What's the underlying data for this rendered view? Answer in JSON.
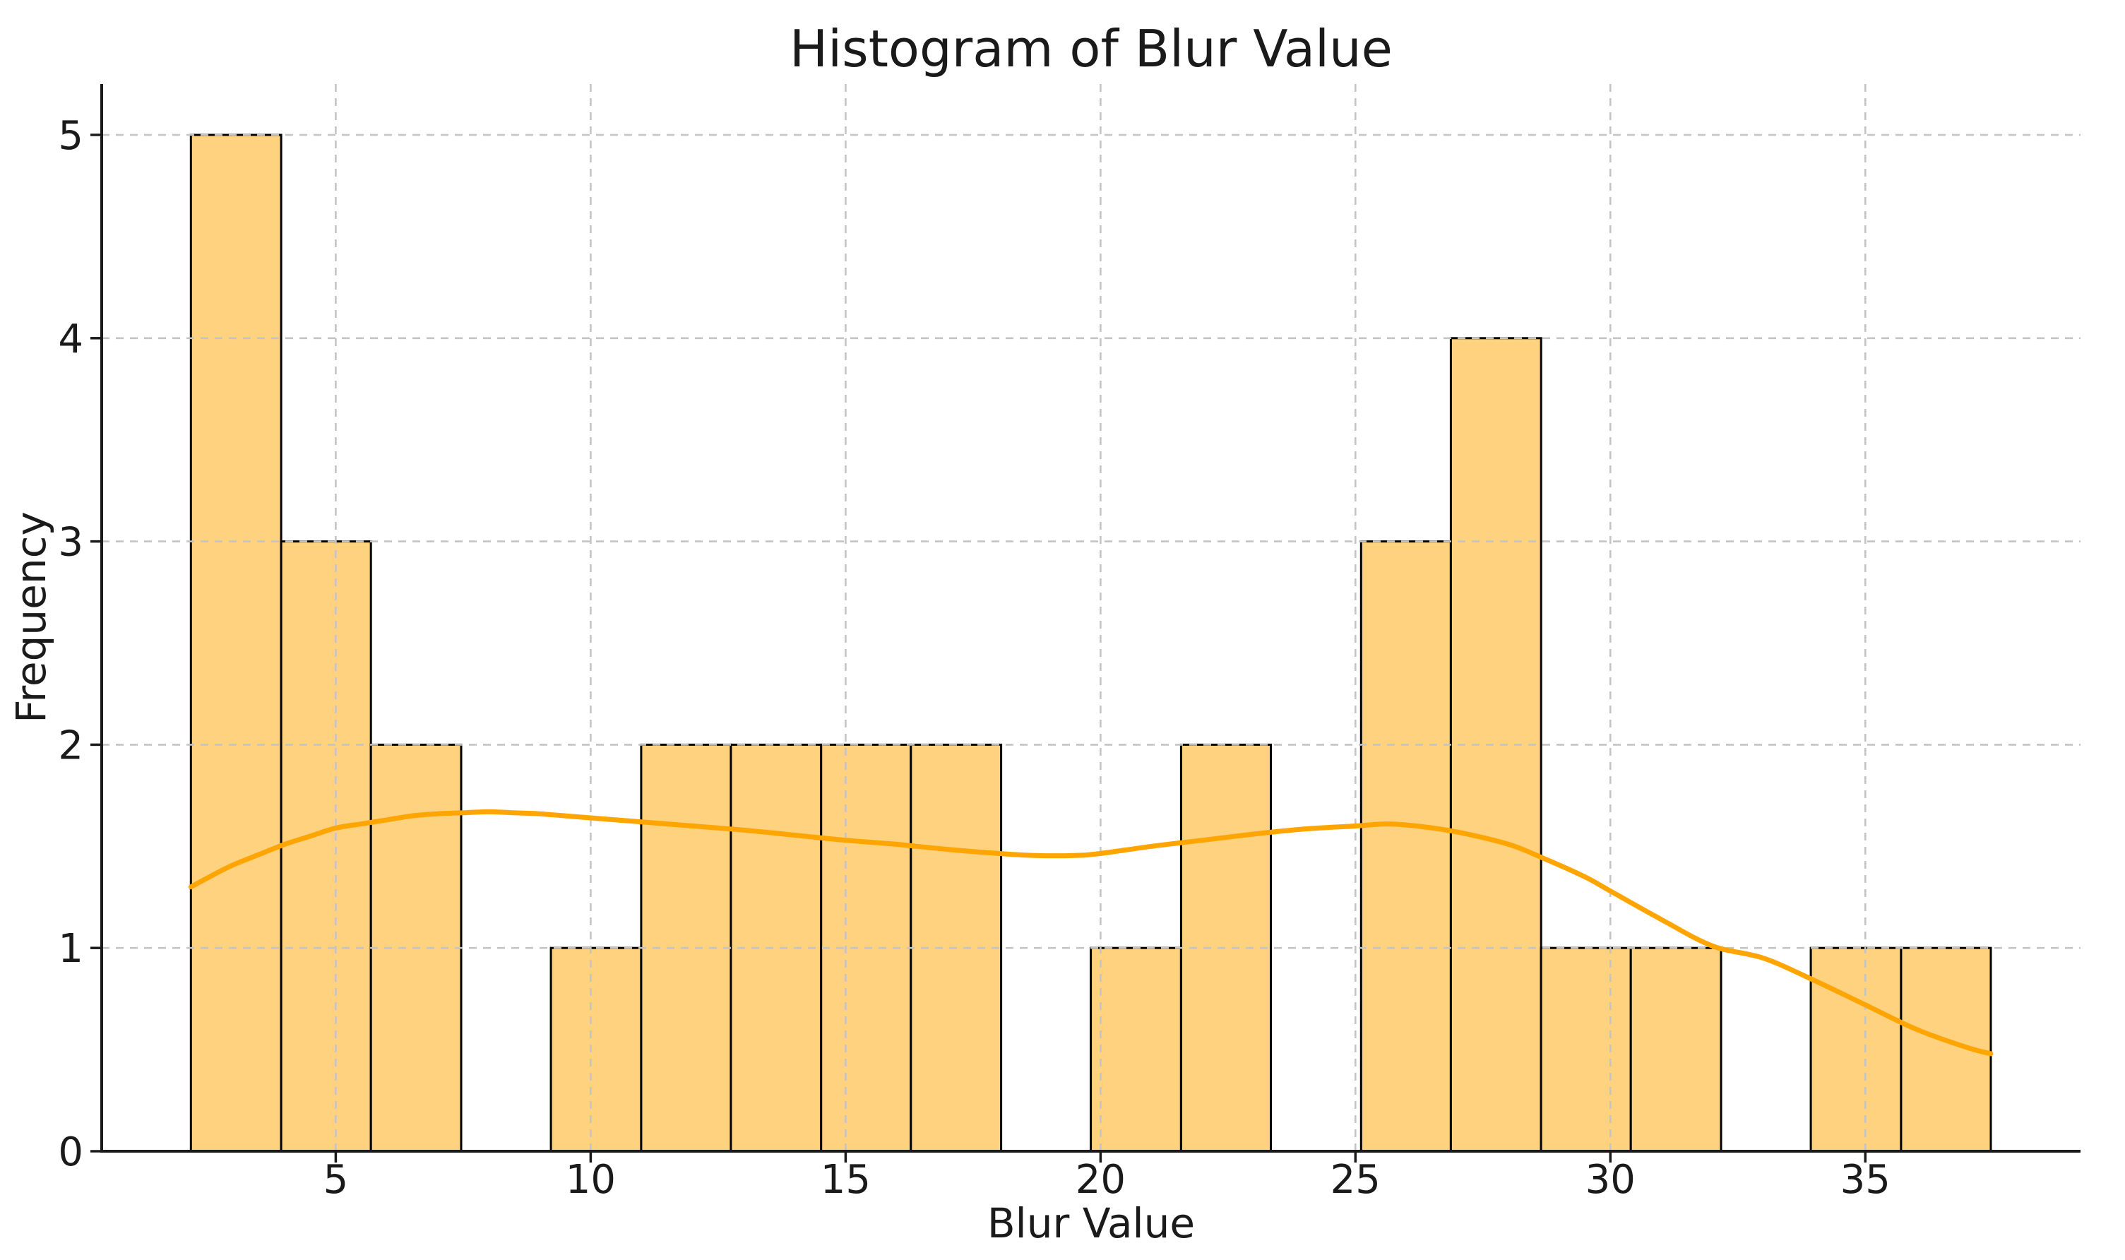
{
  "chart_data": {
    "type": "bar",
    "subtype": "histogram-with-kde",
    "title": "Histogram of Blur Value",
    "xlabel": "Blur Value",
    "ylabel": "Frequency",
    "bins": {
      "edges": [
        2.16,
        3.93,
        5.69,
        7.46,
        9.22,
        10.99,
        12.75,
        14.52,
        16.28,
        18.05,
        19.81,
        21.58,
        23.34,
        25.11,
        26.87,
        28.64,
        30.4,
        32.17,
        33.93,
        35.7,
        37.46
      ],
      "counts": [
        5,
        3,
        2,
        0,
        1,
        2,
        2,
        2,
        2,
        0,
        1,
        2,
        0,
        3,
        4,
        1,
        1,
        0,
        1,
        1
      ]
    },
    "kde": {
      "x": [
        2.16,
        2.6,
        3.0,
        3.5,
        4.0,
        4.5,
        5.0,
        5.5,
        6.0,
        6.5,
        7.0,
        7.5,
        8.0,
        8.5,
        9.0,
        9.5,
        10.0,
        11.0,
        12.0,
        13.0,
        14.0,
        15.0,
        16.0,
        17.0,
        18.0,
        18.7,
        19.5,
        20.0,
        21.0,
        22.0,
        23.0,
        24.0,
        25.0,
        25.6,
        26.2,
        27.0,
        28.0,
        28.7,
        29.5,
        30.0,
        31.0,
        32.0,
        33.0,
        34.0,
        35.0,
        36.0,
        37.0,
        37.46
      ],
      "y": [
        1.3,
        1.36,
        1.41,
        1.46,
        1.51,
        1.55,
        1.59,
        1.61,
        1.63,
        1.65,
        1.66,
        1.665,
        1.67,
        1.665,
        1.66,
        1.65,
        1.64,
        1.62,
        1.6,
        1.58,
        1.555,
        1.53,
        1.51,
        1.485,
        1.465,
        1.455,
        1.455,
        1.465,
        1.5,
        1.53,
        1.56,
        1.585,
        1.6,
        1.61,
        1.6,
        1.57,
        1.51,
        1.44,
        1.35,
        1.28,
        1.14,
        1.01,
        0.95,
        0.84,
        0.72,
        0.6,
        0.51,
        0.48
      ]
    },
    "axes": {
      "xticks": [
        5,
        10,
        15,
        20,
        25,
        30,
        35
      ],
      "yticks": [
        0,
        1,
        2,
        3,
        4,
        5
      ],
      "xlim": [
        0.41,
        39.22
      ],
      "ylim": [
        0,
        5.25
      ],
      "grid": "dashed"
    },
    "colors": {
      "bar_fill": "#fed27e",
      "bar_edge": "#000000",
      "kde_line": "#ffa502",
      "grid": "#c4c4c4",
      "text": "#1a1a1a",
      "spine": "#1a1a1a",
      "background": "#ffffff"
    }
  }
}
